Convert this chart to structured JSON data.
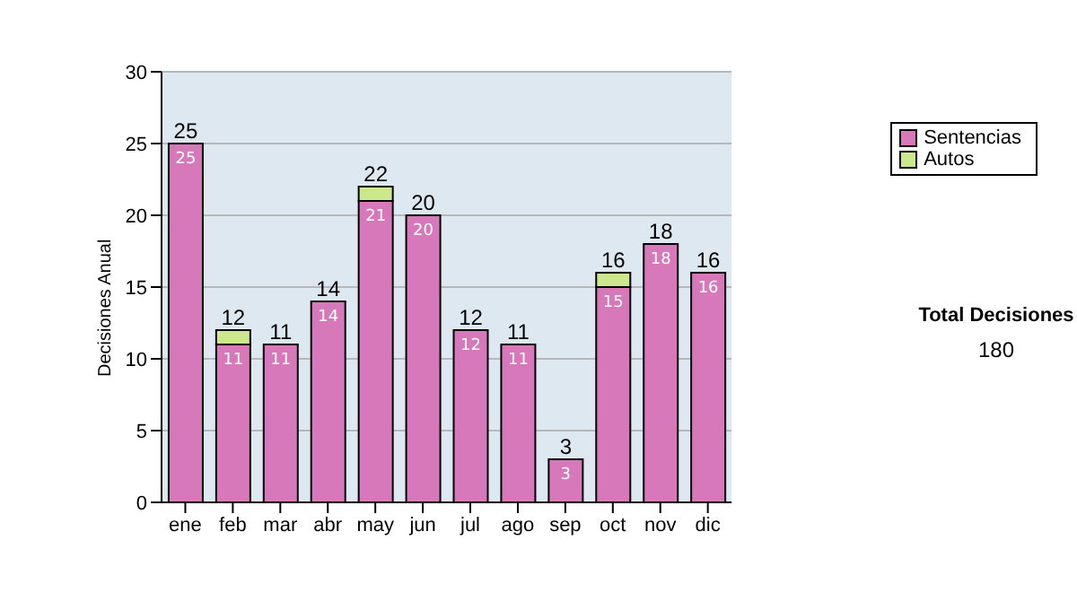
{
  "chart_data": {
    "type": "bar",
    "stacked": true,
    "ylabel": "Decisiones Anual",
    "categories": [
      "ene",
      "feb",
      "mar",
      "abr",
      "may",
      "jun",
      "jul",
      "ago",
      "sep",
      "oct",
      "nov",
      "dic"
    ],
    "series": [
      {
        "name": "Sentencias",
        "color": "#d678b9",
        "values": [
          25,
          11,
          11,
          14,
          21,
          20,
          12,
          11,
          3,
          15,
          18,
          16
        ],
        "value_labels": [
          "25",
          "11",
          "11",
          "14",
          "21",
          "20",
          "12",
          "11",
          "3",
          "15",
          "18",
          "16"
        ]
      },
      {
        "name": "Autos",
        "color": "#cce88f",
        "values": [
          0,
          1,
          0,
          0,
          1,
          0,
          0,
          0,
          0,
          1,
          0,
          0
        ]
      }
    ],
    "totals": [
      "25",
      "12",
      "11",
      "14",
      "22",
      "20",
      "12",
      "11",
      "3",
      "16",
      "18",
      "16"
    ],
    "ylim": [
      0,
      30
    ],
    "yticks": [
      0,
      5,
      10,
      15,
      20,
      25,
      30
    ],
    "grid": "y",
    "legend": "right",
    "annotations": [
      "Total Decisiones",
      "180"
    ]
  }
}
